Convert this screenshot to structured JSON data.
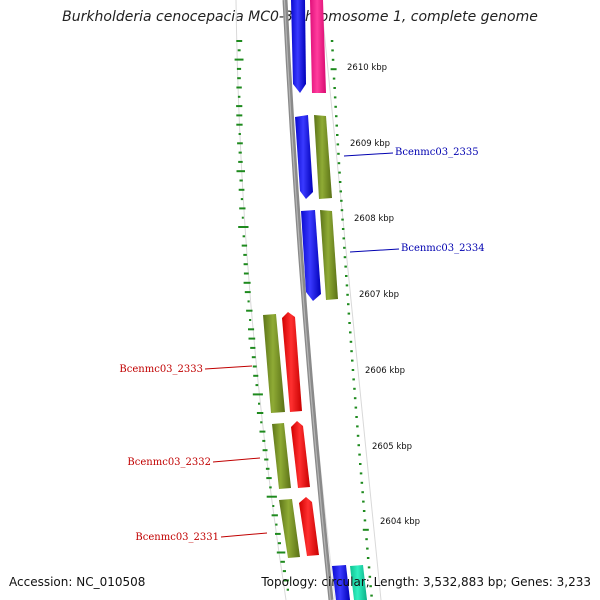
{
  "title": "Burkholderia cenocepacia MC0-3 chromosome 1, complete genome",
  "footer": {
    "accession": "Accession: NC_010508",
    "stats": "Topology: circular; Length: 3,532,883 bp; Genes: 3,233"
  },
  "colors": {
    "backbone": "#888888",
    "gc_ticks": "#1e8a1e",
    "forward_gene": "#ff1f1f",
    "forward_gene_top": "#ff2a8a",
    "reverse_gene": "#1a1aff",
    "cds": "#7d9a2a",
    "teal_gene": "#19e6b0",
    "label_forward": "#c00000",
    "label_reverse": "#0000b0"
  },
  "kbp_labels": [
    "2610 kbp",
    "2609 kbp",
    "2608 kbp",
    "2607 kbp",
    "2606 kbp",
    "2605 kbp",
    "2604 kbp"
  ],
  "genes": [
    {
      "name": "Bcenmc03_2335",
      "strand": "reverse"
    },
    {
      "name": "Bcenmc03_2334",
      "strand": "reverse"
    },
    {
      "name": "Bcenmc03_2333",
      "strand": "forward"
    },
    {
      "name": "Bcenmc03_2332",
      "strand": "forward"
    },
    {
      "name": "Bcenmc03_2331",
      "strand": "forward"
    }
  ]
}
